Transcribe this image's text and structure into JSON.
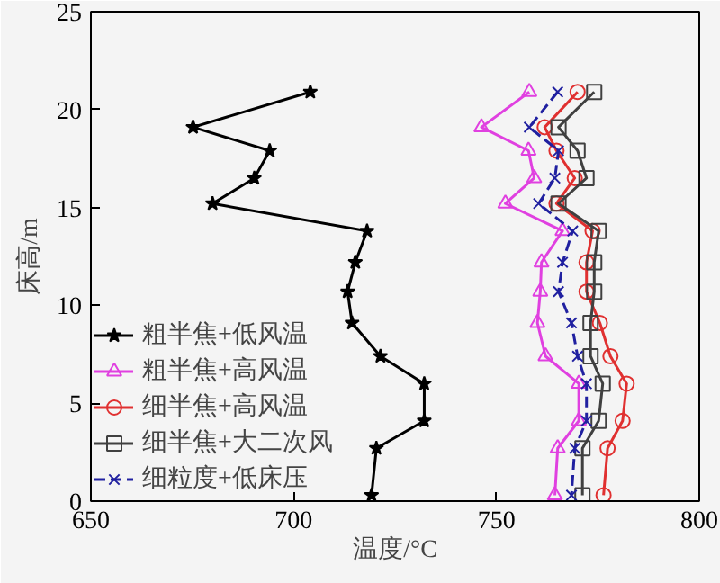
{
  "chart_data": {
    "type": "line",
    "xlabel": "温度/°C",
    "ylabel": "床高/m",
    "xlim": [
      650,
      800
    ],
    "xticks": [
      650,
      700,
      750,
      800
    ],
    "ylim": [
      0,
      25
    ],
    "yticks": [
      0,
      5,
      10,
      15,
      20,
      25
    ],
    "grid": false,
    "legend": "bottom left",
    "series": [
      {
        "name": "粗半焦+低风温",
        "color": "#000000",
        "marker": "star",
        "line_style": "solid",
        "x": [
          704.1,
          675.2,
          694.1,
          690.3,
          680.0,
          718.1,
          715.2,
          713.3,
          714.4,
          721.4,
          732.2,
          732.2,
          720.4,
          719.2
        ],
        "values": [
          20.9,
          19.1,
          17.9,
          16.5,
          15.2,
          13.8,
          12.2,
          10.7,
          9.1,
          7.4,
          6.0,
          4.1,
          2.7,
          0.3
        ]
      },
      {
        "name": "粗半焦+高风温",
        "color": "#e040e0",
        "marker": "triangle",
        "line_style": "solid",
        "x": [
          758.1,
          746.3,
          757.9,
          759.3,
          752.2,
          766.3,
          761.1,
          760.8,
          760.1,
          762.1,
          770.3,
          770.3,
          765.1,
          764.4
        ],
        "values": [
          20.9,
          19.1,
          17.9,
          16.5,
          15.2,
          13.8,
          12.2,
          10.7,
          9.1,
          7.4,
          6.0,
          4.1,
          2.7,
          0.3
        ]
      },
      {
        "name": "细半焦+高风温",
        "color": "#e03030",
        "marker": "circle",
        "line_style": "solid",
        "x": [
          770.0,
          761.9,
          764.8,
          769.3,
          764.8,
          773.7,
          772.2,
          772.2,
          775.5,
          778.1,
          782.1,
          781.1,
          777.4,
          776.4
        ],
        "values": [
          20.9,
          19.1,
          17.9,
          16.5,
          15.2,
          13.8,
          12.2,
          10.7,
          9.1,
          7.4,
          6.0,
          4.1,
          2.7,
          0.3
        ]
      },
      {
        "name": "细半焦+大二次风",
        "color": "#404040",
        "marker": "square",
        "line_style": "solid",
        "x": [
          774.1,
          765.3,
          770.0,
          772.2,
          765.3,
          775.2,
          774.1,
          774.1,
          773.2,
          773.2,
          776.2,
          775.2,
          771.2,
          771.2
        ],
        "values": [
          20.9,
          19.1,
          17.9,
          16.5,
          15.2,
          13.8,
          12.2,
          10.7,
          9.1,
          7.4,
          6.0,
          4.1,
          2.7,
          0.3
        ]
      },
      {
        "name": "细粒度+低床压",
        "color": "#2020a0",
        "marker": "cross",
        "line_style": "dashed",
        "x": [
          765.1,
          758.1,
          765.3,
          764.4,
          760.4,
          768.8,
          766.3,
          765.3,
          768.5,
          770.0,
          772.2,
          772.2,
          769.3,
          768.5
        ],
        "values": [
          20.9,
          19.1,
          17.9,
          16.5,
          15.2,
          13.8,
          12.2,
          10.7,
          9.1,
          7.4,
          6.0,
          4.1,
          2.7,
          0.3
        ]
      }
    ]
  }
}
